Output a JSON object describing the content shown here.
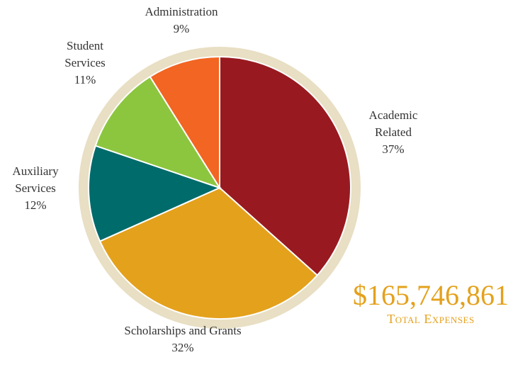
{
  "chart_data": {
    "type": "pie",
    "slices": [
      {
        "label": "Academic Related",
        "label_lines": [
          "Academic",
          "Related"
        ],
        "percent_text": "37%",
        "value": 37,
        "color": "#981a20"
      },
      {
        "label": "Scholarships and Grants",
        "label_lines": [
          "Scholarships and Grants"
        ],
        "percent_text": "32%",
        "value": 32,
        "color": "#e4a11c"
      },
      {
        "label": "Auxiliary Services",
        "label_lines": [
          "Auxiliary",
          "Services"
        ],
        "percent_text": "12%",
        "value": 12,
        "color": "#006b6b"
      },
      {
        "label": "Student Services",
        "label_lines": [
          "Student",
          "Services"
        ],
        "percent_text": "11%",
        "value": 11,
        "color": "#8cc63f"
      },
      {
        "label": "Administration",
        "label_lines": [
          "Administration"
        ],
        "percent_text": "9%",
        "value": 9,
        "color": "#f26522"
      }
    ],
    "ring_color": "#e8dfc4",
    "start": "12 o'clock",
    "direction": "clockwise"
  },
  "total": {
    "amount": "$165,746,861",
    "label": "Total Expenses"
  }
}
